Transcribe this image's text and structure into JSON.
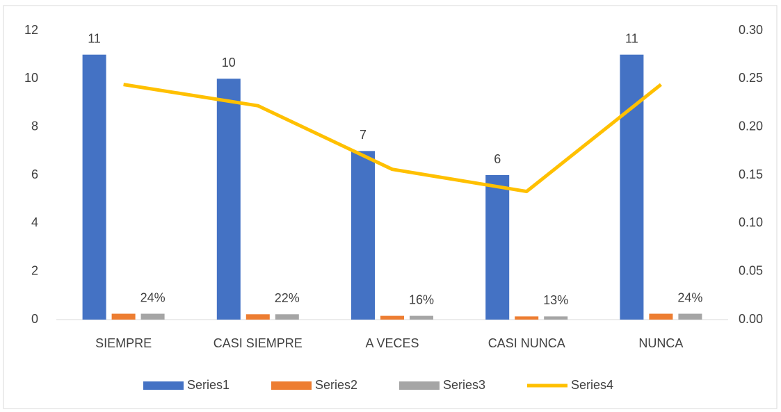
{
  "chart_data": {
    "type": "bar",
    "categories": [
      "SIEMPRE",
      "CASI SIEMPRE",
      "A VECES",
      "CASI NUNCA",
      "NUNCA"
    ],
    "series": [
      {
        "name": "Series1",
        "color": "#4472c4",
        "type": "bar",
        "values": [
          11,
          10,
          7,
          6,
          11
        ]
      },
      {
        "name": "Series2",
        "color": "#ed7d31",
        "type": "bar",
        "values": [
          0.244,
          0.222,
          0.156,
          0.133,
          0.244
        ]
      },
      {
        "name": "Series3",
        "color": "#a5a5a5",
        "type": "bar",
        "values": [
          0.244,
          0.222,
          0.156,
          0.133,
          0.244
        ],
        "value_labels": [
          "24%",
          "22%",
          "16%",
          "13%",
          "24%"
        ]
      },
      {
        "name": "Series4",
        "color": "#ffc000",
        "type": "line",
        "axis": "y2",
        "values": [
          0.244,
          0.222,
          0.156,
          0.133,
          0.244
        ]
      }
    ],
    "ylim": [
      0,
      12
    ],
    "yticks": [
      0,
      2,
      4,
      6,
      8,
      10,
      12
    ],
    "y2lim": [
      0,
      0.3
    ],
    "y2ticks": [
      {
        "value": 0,
        "label": "0.00"
      },
      {
        "value": 0.05,
        "label": "0.05"
      },
      {
        "value": 0.1,
        "label": "0.10"
      },
      {
        "value": 0.15,
        "label": "0.15"
      },
      {
        "value": 0.2,
        "label": "0.20"
      },
      {
        "value": 0.25,
        "label": "0.25"
      },
      {
        "value": 0.3,
        "label": "0.30"
      }
    ],
    "data_labels_series": [
      0,
      2
    ],
    "grid": false,
    "legend": "bottom"
  }
}
